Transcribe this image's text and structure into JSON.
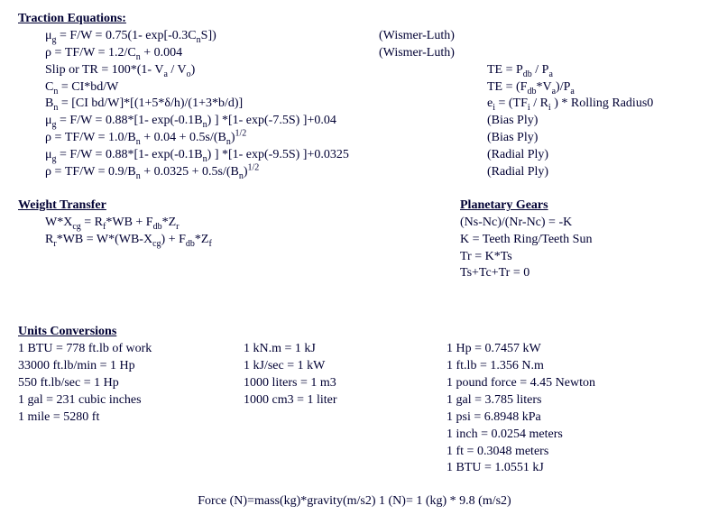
{
  "traction": {
    "heading": "Traction Equations:",
    "col1": [
      "μ<sub>g</sub> = F/W = 0.75(1- exp[-0.3C<sub>n</sub>S])",
      "ρ = TF/W = 1.2/C<sub>n</sub> + 0.004",
      "Slip or TR = 100*(1- V<sub>a</sub> / V<sub>o</sub>)",
      "C<sub>n</sub> = CI*bd/W",
      "B<sub>n</sub> = [CI bd/W]*[(1+5*δ/h)/(1+3*b/d)]",
      "μ<sub>g</sub> = F/W = 0.88*[1- exp(-0.1B<sub>n</sub>) ] *[1- exp(-7.5S) ]+0.04",
      "ρ =  TF/W = 1.0/B<sub>n</sub>  + 0.04 + 0.5s/(B<sub>n</sub>)<sup>1/2</sup>",
      "μ<sub>g</sub> = F/W = 0.88*[1- exp(-0.1B<sub>n</sub>) ] *[1- exp(-9.5S) ]+0.0325",
      "ρ =  TF/W = 0.9/B<sub>n</sub>  + 0.0325 + 0.5s/(B<sub>n</sub>)<sup>1/2</sup>"
    ],
    "col2": [
      "(Wismer-Luth)",
      "(Wismer-Luth)",
      "",
      "",
      "",
      "",
      "",
      "",
      ""
    ],
    "col3": [
      "",
      "",
      "TE = P<sub>db</sub> / P<sub>a</sub>",
      "TE = (F<sub>db</sub>*V<sub>a</sub>)/P<sub>a</sub>",
      "e<sub>i</sub> = (TF<sub>i</sub> / R<sub>i</sub> ) * Rolling Radius0",
      "(Bias Ply)",
      "(Bias Ply)",
      "(Radial Ply)",
      "(Radial Ply)"
    ]
  },
  "weight_transfer": {
    "heading": "Weight Transfer",
    "lines": [
      "W*X<sub>cg</sub> = R<sub>f</sub>*WB + F<sub>db</sub>*Z<sub>r</sub>",
      "R<sub>r</sub>*WB = W*(WB-X<sub>cg</sub>)  + F<sub>db</sub>*Z<sub>f</sub>"
    ]
  },
  "planetary": {
    "heading": "Planetary Gears",
    "lines": [
      "(Ns-Nc)/(Nr-Nc) = -K",
      "K = Teeth Ring/Teeth Sun",
      "Tr = K*Ts",
      "Ts+Tc+Tr = 0"
    ]
  },
  "units": {
    "heading": "Units Conversions",
    "col1": [
      "1 BTU = 778 ft.lb of work",
      "33000 ft.lb/min = 1 Hp",
      "550 ft.lb/sec = 1 Hp",
      "1 gal = 231 cubic inches",
      "1 mile = 5280 ft"
    ],
    "col2": [
      "1 kN.m = 1 kJ",
      "1 kJ/sec = 1 kW",
      "1000 liters = 1 m3",
      "1000 cm3 = 1 liter"
    ],
    "col3": [
      "1 Hp = 0.7457 kW",
      "1 ft.lb = 1.356 N.m",
      "1 pound force = 4.45 Newton",
      "1 gal = 3.785 liters",
      "1 psi = 6.8948 kPa",
      "1 inch = 0.0254 meters",
      "1 ft = 0.3048 meters",
      "1 BTU = 1.0551 kJ"
    ]
  },
  "footer": "Force (N)=mass(kg)*gravity(m/s2)  1 (N)= 1 (kg) * 9.8 (m/s2)"
}
